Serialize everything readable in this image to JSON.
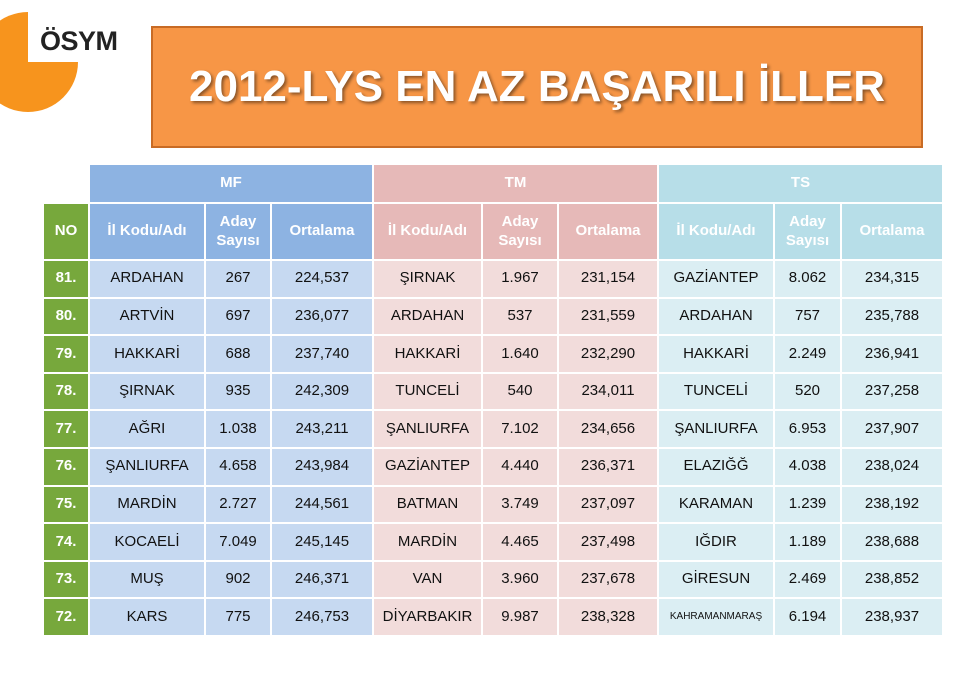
{
  "logo": "ÖSYM",
  "title": "2012-LYS EN AZ BAŞARILI İLLER",
  "table": {
    "no_header": "NO",
    "groups": [
      "MF",
      "TM",
      "TS"
    ],
    "columns": [
      "İl Kodu/Adı",
      "Aday Sayısı",
      "Ortalama"
    ],
    "rows": [
      [
        "81.",
        "ARDAHAN",
        "267",
        "224,537",
        "ŞIRNAK",
        "1.967",
        "231,154",
        "GAZİANTEP",
        "8.062",
        "234,315"
      ],
      [
        "80.",
        "ARTVİN",
        "697",
        "236,077",
        "ARDAHAN",
        "537",
        "231,559",
        "ARDAHAN",
        "757",
        "235,788"
      ],
      [
        "79.",
        "HAKKARİ",
        "688",
        "237,740",
        "HAKKARİ",
        "1.640",
        "232,290",
        "HAKKARİ",
        "2.249",
        "236,941"
      ],
      [
        "78.",
        "ŞIRNAK",
        "935",
        "242,309",
        "TUNCELİ",
        "540",
        "234,011",
        "TUNCELİ",
        "520",
        "237,258"
      ],
      [
        "77.",
        "AĞRI",
        "1.038",
        "243,211",
        "ŞANLIURFA",
        "7.102",
        "234,656",
        "ŞANLIURFA",
        "6.953",
        "237,907"
      ],
      [
        "76.",
        "ŞANLIURFA",
        "4.658",
        "243,984",
        "GAZİANTEP",
        "4.440",
        "236,371",
        "ELAZIĞĞ",
        "4.038",
        "238,024"
      ],
      [
        "75.",
        "MARDİN",
        "2.727",
        "244,561",
        "BATMAN",
        "3.749",
        "237,097",
        "KARAMAN",
        "1.239",
        "238,192"
      ],
      [
        "74.",
        "KOCAELİ",
        "7.049",
        "245,145",
        "MARDİN",
        "4.465",
        "237,498",
        "IĞDIR",
        "1.189",
        "238,688"
      ],
      [
        "73.",
        "MUŞ",
        "902",
        "246,371",
        "VAN",
        "3.960",
        "237,678",
        "GİRESUN",
        "2.469",
        "238,852"
      ],
      [
        "72.",
        "KARS",
        "775",
        "246,753",
        "DİYARBAKIR",
        "9.987",
        "238,328",
        "KAHRAMANMARAŞ",
        "6.194",
        "238,937"
      ]
    ]
  }
}
